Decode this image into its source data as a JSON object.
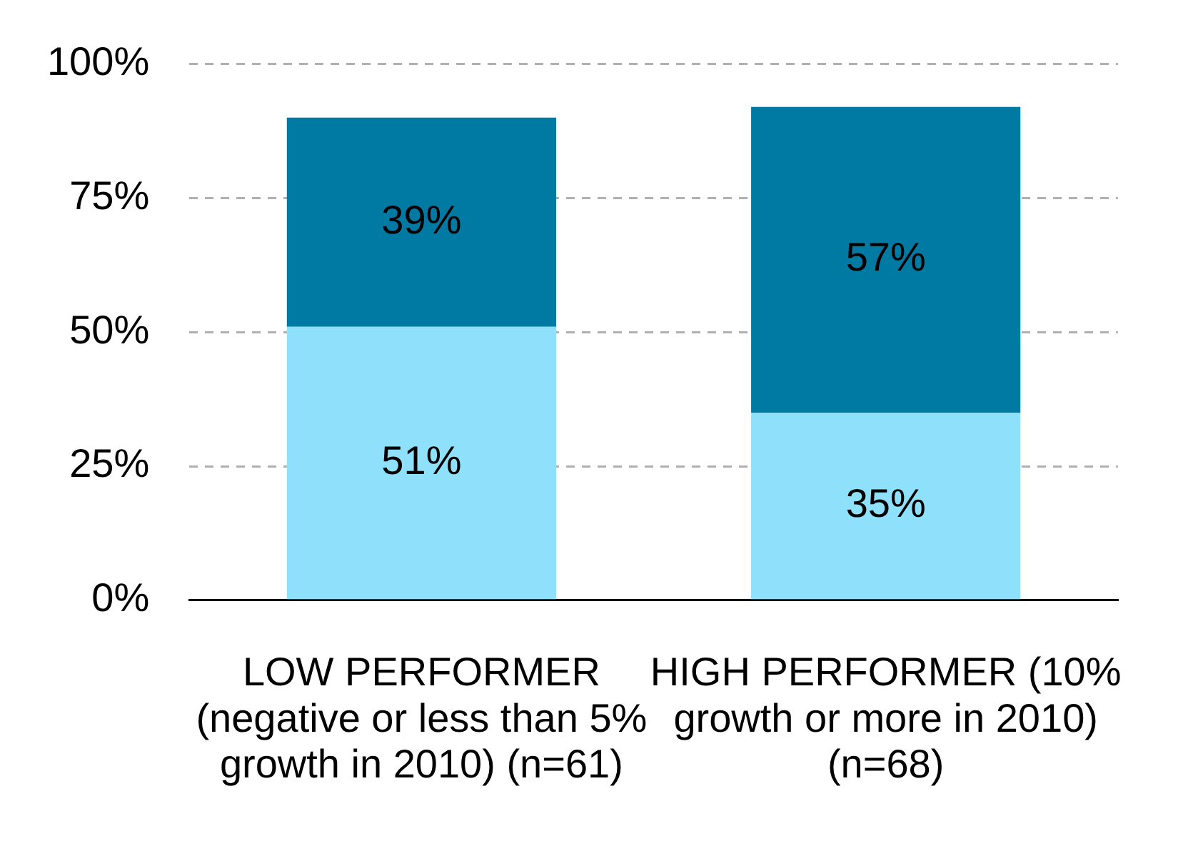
{
  "chart_data": {
    "type": "bar",
    "stacked": true,
    "categories": [
      "LOW PERFORMER (negative or less than 5% growth in 2010) (n=61)",
      "HIGH PERFORMER (10% growth or more in 2010) (n=68)"
    ],
    "series": [
      {
        "color": "#8ee0fb",
        "values": [
          51,
          35
        ],
        "value_labels": [
          "51%",
          "35%"
        ]
      },
      {
        "color": "#0079a3",
        "values": [
          39,
          57
        ],
        "value_labels": [
          "39%",
          "57%"
        ]
      }
    ],
    "ylim": [
      0,
      100
    ],
    "yticks": [
      {
        "value": 0,
        "label": "0%"
      },
      {
        "value": 25,
        "label": "25%"
      },
      {
        "value": 50,
        "label": "50%"
      },
      {
        "value": 75,
        "label": "75%"
      },
      {
        "value": 100,
        "label": "100%"
      }
    ],
    "grid": "y",
    "legend": false
  }
}
